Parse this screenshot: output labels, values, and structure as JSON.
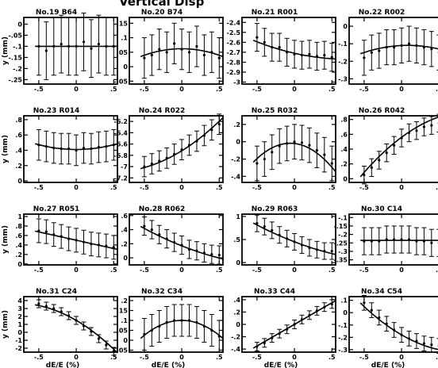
{
  "figure": {
    "heading": "Vertical Disp",
    "ylabel": "y (mm)",
    "xlabel": "dE/E (%)"
  },
  "chart_data": [
    {
      "type": "scatter",
      "title": "No.19 B64",
      "x": [
        -0.5,
        -0.4,
        -0.3,
        -0.2,
        -0.1,
        0,
        0.1,
        0.2,
        0.3,
        0.4,
        0.5
      ],
      "y": [
        -0.1,
        -0.12,
        -0.1,
        -0.09,
        -0.1,
        -0.1,
        -0.08,
        -0.11,
        -0.09,
        -0.1,
        -0.1
      ],
      "err": 0.13,
      "fit": [
        -0.1,
        0,
        0
      ],
      "xticks": [
        -0.5,
        0,
        0.5
      ],
      "xticklabels": [
        "-.5",
        "0",
        ".5"
      ],
      "yticks": [
        0,
        -0.05,
        -0.1,
        -0.15,
        -0.2,
        -0.25
      ],
      "yticklabels": [
        "0",
        "-.05",
        "-.1",
        "-.15",
        "-.2",
        "-.25"
      ],
      "ylim": [
        -0.27,
        0.03
      ],
      "xlim": [
        -0.7,
        0.55
      ]
    },
    {
      "type": "scatter",
      "title": "No.20 B74",
      "x": [
        -0.5,
        -0.4,
        -0.3,
        -0.2,
        -0.1,
        0,
        0.1,
        0.2,
        0.3,
        0.4,
        0.5
      ],
      "y": [
        0.03,
        0.04,
        0.06,
        0.05,
        0.08,
        0.06,
        0.05,
        0.07,
        0.04,
        0.05,
        0.03
      ],
      "err": 0.07,
      "fit": [
        0.062,
        0,
        -0.09
      ],
      "xticks": [
        -0.5,
        0,
        0.5
      ],
      "xticklabels": [
        "-.5",
        "0",
        ".5"
      ],
      "yticks": [
        0.15,
        0.1,
        0.05,
        0,
        -0.05
      ],
      "yticklabels": [
        ".15",
        ".1",
        ".05",
        "0",
        "-.05"
      ],
      "ylim": [
        -0.06,
        0.17
      ],
      "xlim": [
        -0.7,
        0.55
      ]
    },
    {
      "type": "scatter",
      "title": "No.21 R001",
      "x": [
        -0.5,
        -0.4,
        -0.3,
        -0.2,
        -0.1,
        0,
        0.1,
        0.2,
        0.3,
        0.4,
        0.5
      ],
      "y": [
        -2.55,
        -2.6,
        -2.65,
        -2.65,
        -2.7,
        -2.72,
        -2.73,
        -2.72,
        -2.74,
        -2.73,
        -2.75
      ],
      "err": 0.14,
      "fit": [
        -2.71,
        -0.17,
        0.12
      ],
      "xticks": [
        -0.5,
        0,
        0.5
      ],
      "xticklabels": [
        "-.5",
        "0",
        ".5"
      ],
      "yticks": [
        -2.4,
        -2.5,
        -2.6,
        -2.7,
        -2.8,
        -2.9,
        -3.0
      ],
      "yticklabels": [
        "-2.4",
        "-2.5",
        "-2.6",
        "-2.7",
        "-2.8",
        "-2.9",
        "-3"
      ],
      "ylim": [
        -3.02,
        -2.35
      ],
      "xlim": [
        -0.7,
        0.55
      ]
    },
    {
      "type": "scatter",
      "title": "No.22 R002",
      "x": [
        -0.5,
        -0.4,
        -0.3,
        -0.2,
        -0.1,
        0,
        0.1,
        0.2,
        0.3,
        0.4,
        0.5
      ],
      "y": [
        -0.18,
        -0.15,
        -0.14,
        -0.12,
        -0.12,
        -0.11,
        -0.1,
        -0.11,
        -0.12,
        -0.13,
        -0.15
      ],
      "err": 0.1,
      "fit": [
        -0.11,
        0.02,
        -0.12
      ],
      "xticks": [
        -0.5,
        0,
        0.5
      ],
      "xticklabels": [
        "-.5",
        "0",
        ".5"
      ],
      "yticks": [
        0,
        -0.1,
        -0.2,
        -0.3
      ],
      "yticklabels": [
        "0",
        "-.1",
        "-.2",
        "-.3"
      ],
      "ylim": [
        -0.33,
        0.05
      ],
      "xlim": [
        -0.7,
        0.55
      ]
    },
    {
      "type": "scatter",
      "title": "No.23 R014",
      "x": [
        -0.5,
        -0.4,
        -0.3,
        -0.2,
        -0.1,
        0,
        0.1,
        0.2,
        0.3,
        0.4,
        0.5
      ],
      "y": [
        0.47,
        0.45,
        0.43,
        0.42,
        0.42,
        0.4,
        0.43,
        0.42,
        0.44,
        0.45,
        0.47
      ],
      "err": 0.2,
      "fit": [
        0.41,
        0,
        0.25
      ],
      "xticks": [
        -0.5,
        0,
        0.5
      ],
      "xticklabels": [
        "-.5",
        "0",
        ".5"
      ],
      "yticks": [
        0.8,
        0.6,
        0.4,
        0.2,
        0
      ],
      "yticklabels": [
        ".8",
        ".6",
        ".4",
        ".2",
        "0"
      ],
      "ylim": [
        -0.02,
        0.85
      ],
      "xlim": [
        -0.7,
        0.55
      ]
    },
    {
      "type": "scatter",
      "title": "No.24 R022",
      "x": [
        -0.5,
        -0.4,
        -0.3,
        -0.2,
        -0.1,
        0,
        0.1,
        0.2,
        0.3,
        0.4,
        0.5
      ],
      "y": [
        -7.0,
        -6.95,
        -6.9,
        -6.85,
        -6.78,
        -6.7,
        -6.62,
        -6.55,
        -6.45,
        -6.35,
        -6.25
      ],
      "err": 0.18,
      "fit": [
        -6.72,
        0.82,
        0.45
      ],
      "xticks": [
        -0.5,
        0,
        0.5
      ],
      "xticklabels": [
        "-.5",
        "0",
        ".5"
      ],
      "yticks": [
        -6.2,
        -6.4,
        -6.6,
        -6.8,
        -7.0,
        -7.2
      ],
      "yticklabels": [
        "-6.2",
        "-6.4",
        "-6.6",
        "-6.8",
        "-7",
        "-7.2"
      ],
      "ylim": [
        -7.28,
        -6.1
      ],
      "xlim": [
        -0.7,
        0.55
      ]
    },
    {
      "type": "scatter",
      "title": "No.25 R032",
      "x": [
        -0.5,
        -0.4,
        -0.3,
        -0.2,
        -0.1,
        0,
        0.1,
        0.2,
        0.3,
        0.4,
        0.5
      ],
      "y": [
        -0.25,
        -0.2,
        -0.12,
        -0.05,
        -0.02,
        0,
        -0.01,
        -0.04,
        -0.1,
        -0.15,
        -0.25
      ],
      "err": 0.2,
      "fit": [
        -0.02,
        -0.1,
        -0.9
      ],
      "xticks": [
        -0.5,
        0,
        0.5
      ],
      "xticklabels": [
        "-.5",
        "0",
        ".5"
      ],
      "yticks": [
        0.2,
        0,
        -0.2,
        -0.4
      ],
      "yticklabels": [
        ".2",
        "0",
        "-.2",
        "-.4"
      ],
      "ylim": [
        -0.47,
        0.3
      ],
      "xlim": [
        -0.7,
        0.55
      ]
    },
    {
      "type": "scatter",
      "title": "No.26 R042",
      "x": [
        -0.5,
        -0.4,
        -0.3,
        -0.2,
        -0.1,
        0,
        0.1,
        0.2,
        0.3,
        0.4,
        0.5
      ],
      "y": [
        0.05,
        0.15,
        0.25,
        0.35,
        0.45,
        0.55,
        0.62,
        0.65,
        0.7,
        0.72,
        0.75
      ],
      "err": 0.12,
      "fit": [
        0.56,
        0.75,
        -0.4
      ],
      "xticks": [
        -0.5,
        0,
        0.5
      ],
      "xticklabels": [
        "-.5",
        "0",
        ".5"
      ],
      "yticks": [
        0.8,
        0.6,
        0.4,
        0.2,
        0
      ],
      "yticklabels": [
        ".8",
        ".6",
        ".4",
        ".2",
        "0"
      ],
      "ylim": [
        -0.05,
        0.85
      ],
      "xlim": [
        -0.7,
        0.55
      ]
    },
    {
      "type": "scatter",
      "title": "No.27 R051",
      "x": [
        -0.5,
        -0.4,
        -0.3,
        -0.2,
        -0.1,
        0,
        0.1,
        0.2,
        0.3,
        0.4,
        0.5
      ],
      "y": [
        0.7,
        0.68,
        0.62,
        0.58,
        0.53,
        0.5,
        0.46,
        0.42,
        0.4,
        0.38,
        0.35
      ],
      "err": 0.25,
      "fit": [
        0.5,
        -0.35,
        0
      ],
      "xticks": [
        -0.5,
        0,
        0.5
      ],
      "xticklabels": [
        "-.5",
        "0",
        ".5"
      ],
      "yticks": [
        1,
        0.8,
        0.6,
        0.4,
        0.2,
        0
      ],
      "yticklabels": [
        "1",
        ".8",
        ".6",
        ".4",
        ".2",
        "0"
      ],
      "ylim": [
        -0.02,
        1.05
      ],
      "xlim": [
        -0.7,
        0.55
      ]
    },
    {
      "type": "scatter",
      "title": "No.28 R062",
      "x": [
        -0.5,
        -0.4,
        -0.3,
        -0.2,
        -0.1,
        0,
        0.1,
        0.2,
        0.3,
        0.4,
        0.5
      ],
      "y": [
        0.45,
        0.4,
        0.33,
        0.27,
        0.22,
        0.18,
        0.12,
        0.1,
        0.07,
        0.05,
        0.04
      ],
      "err": 0.13,
      "fit": [
        0.17,
        -0.42,
        0.15
      ],
      "xticks": [
        -0.5,
        0,
        0.5
      ],
      "xticklabels": [
        "-.5",
        "0",
        ".5"
      ],
      "yticks": [
        0.6,
        0.4,
        0.2,
        0
      ],
      "yticklabels": [
        ".6",
        ".4",
        ".2",
        "0"
      ],
      "ylim": [
        -0.1,
        0.62
      ],
      "xlim": [
        -0.7,
        0.55
      ]
    },
    {
      "type": "scatter",
      "title": "No.29 R063",
      "x": [
        -0.5,
        -0.4,
        -0.3,
        -0.2,
        -0.1,
        0,
        0.1,
        0.2,
        0.3,
        0.4,
        0.5
      ],
      "y": [
        0.85,
        0.78,
        0.7,
        0.6,
        0.52,
        0.45,
        0.38,
        0.32,
        0.28,
        0.25,
        0.25
      ],
      "err": 0.18,
      "fit": [
        0.45,
        -0.62,
        0.22
      ],
      "xticks": [
        -0.5,
        0,
        0.5
      ],
      "xticklabels": [
        "-.5",
        "0",
        ".5"
      ],
      "yticks": [
        1,
        0.5,
        0
      ],
      "yticklabels": [
        "1",
        ".5",
        "0"
      ],
      "ylim": [
        -0.05,
        1.05
      ],
      "xlim": [
        -0.7,
        0.55
      ]
    },
    {
      "type": "scatter",
      "title": "No.30 C14",
      "x": [
        -0.5,
        -0.4,
        -0.3,
        -0.2,
        -0.1,
        0,
        0.1,
        0.2,
        0.3,
        0.4,
        0.5
      ],
      "y": [
        -0.24,
        -0.24,
        -0.24,
        -0.23,
        -0.23,
        -0.23,
        -0.23,
        -0.24,
        -0.24,
        -0.25,
        -0.25
      ],
      "err": 0.08,
      "fit": [
        -0.235,
        0,
        0
      ],
      "xticks": [
        -0.5,
        0,
        0.5
      ],
      "xticklabels": [
        "-.5",
        "0",
        ".5"
      ],
      "yticks": [
        -0.1,
        -0.15,
        -0.2,
        -0.25,
        -0.3,
        -0.35
      ],
      "yticklabels": [
        "-.1",
        "-.15",
        "-.2",
        "-.25",
        "-.3",
        "-.35"
      ],
      "ylim": [
        -0.38,
        -0.08
      ],
      "xlim": [
        -0.7,
        0.55
      ]
    },
    {
      "type": "scatter",
      "title": "No.31 C24",
      "x": [
        -0.5,
        -0.4,
        -0.3,
        -0.2,
        -0.1,
        0,
        0.1,
        0.2,
        0.3,
        0.4,
        0.5
      ],
      "y": [
        3.6,
        3.3,
        3.0,
        2.6,
        2.1,
        1.5,
        0.8,
        0.1,
        -0.8,
        -1.6,
        -2.4
      ],
      "err": 0.5,
      "fit": [
        1.5,
        -5.5,
        -3.5
      ],
      "xticks": [
        -0.5,
        0,
        0.5
      ],
      "xticklabels": [
        "-.5",
        "0",
        ".5"
      ],
      "yticks": [
        4,
        3,
        2,
        1,
        0,
        -1,
        -2
      ],
      "yticklabels": [
        "4",
        "3",
        "2",
        "1",
        "0",
        "-1",
        "-2"
      ],
      "ylim": [
        -2.5,
        4.5
      ],
      "xlim": [
        -0.7,
        0.55
      ]
    },
    {
      "type": "scatter",
      "title": "No.32 C34",
      "x": [
        -0.5,
        -0.4,
        -0.3,
        -0.2,
        -0.1,
        0,
        0.1,
        0.2,
        0.3,
        0.4,
        0.5
      ],
      "y": [
        0.03,
        0.05,
        0.07,
        0.09,
        0.1,
        0.1,
        0.1,
        0.09,
        0.07,
        0.05,
        0.02
      ],
      "err": 0.08,
      "fit": [
        0.1,
        0,
        -0.3
      ],
      "xticks": [
        -0.5,
        0,
        0.5
      ],
      "xticklabels": [
        "-.5",
        "0",
        ".5"
      ],
      "yticks": [
        0.2,
        0.15,
        0.1,
        0.05,
        0,
        -0.05
      ],
      "yticklabels": [
        ".2",
        ".15",
        ".1",
        ".05",
        "0",
        "-.05"
      ],
      "ylim": [
        -0.06,
        0.22
      ],
      "xlim": [
        -0.7,
        0.55
      ]
    },
    {
      "type": "scatter",
      "title": "No.33 C44",
      "x": [
        -0.5,
        -0.4,
        -0.3,
        -0.2,
        -0.1,
        0,
        0.1,
        0.2,
        0.3,
        0.4,
        0.5
      ],
      "y": [
        -0.36,
        -0.3,
        -0.22,
        -0.15,
        -0.08,
        0,
        0.08,
        0.15,
        0.22,
        0.28,
        0.33
      ],
      "err": 0.07,
      "fit": [
        0,
        0.7,
        0
      ],
      "xticks": [
        -0.5,
        0,
        0.5
      ],
      "xticklabels": [
        "-.5",
        "0",
        ".5"
      ],
      "yticks": [
        0.4,
        0.2,
        0,
        -0.2,
        -0.4
      ],
      "yticklabels": [
        ".4",
        ".2",
        "0",
        "-.2",
        "-.4"
      ],
      "ylim": [
        -0.45,
        0.45
      ],
      "xlim": [
        -0.7,
        0.55
      ]
    },
    {
      "type": "scatter",
      "title": "No.34 C54",
      "x": [
        -0.5,
        -0.4,
        -0.3,
        -0.2,
        -0.1,
        0,
        0.1,
        0.2,
        0.3,
        0.4,
        0.5
      ],
      "y": [
        0.08,
        0.02,
        -0.04,
        -0.09,
        -0.14,
        -0.18,
        -0.21,
        -0.23,
        -0.25,
        -0.26,
        -0.27
      ],
      "err": 0.06,
      "fit": [
        -0.18,
        -0.35,
        0.22
      ],
      "xticks": [
        -0.5,
        0,
        0.5
      ],
      "xticklabels": [
        "-.5",
        "0",
        ".5"
      ],
      "yticks": [
        0.1,
        0,
        -0.1,
        -0.2,
        -0.3
      ],
      "yticklabels": [
        ".1",
        "0",
        "-.1",
        "-.2",
        "-.3"
      ],
      "ylim": [
        -0.32,
        0.13
      ],
      "xlim": [
        -0.7,
        0.55
      ]
    }
  ]
}
